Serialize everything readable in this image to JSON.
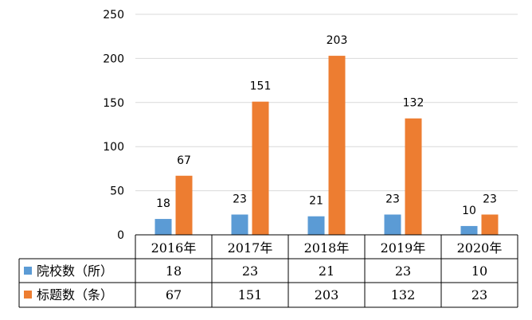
{
  "chart_data": {
    "type": "bar",
    "categories": [
      "2016年",
      "2017年",
      "2018年",
      "2019年",
      "2020年"
    ],
    "series": [
      {
        "name": "院校数（所）",
        "values": [
          18,
          23,
          21,
          23,
          10
        ],
        "color": "#5B9BD5"
      },
      {
        "name": "标题数（条）",
        "values": [
          67,
          151,
          203,
          132,
          23
        ],
        "color": "#ED7D31"
      }
    ],
    "yticks": [
      0,
      50,
      100,
      150,
      200,
      250
    ],
    "ylim": [
      0,
      250
    ],
    "grid": true,
    "legend": "data-table",
    "data_labels": true,
    "title": "",
    "xlabel": "",
    "ylabel": ""
  }
}
